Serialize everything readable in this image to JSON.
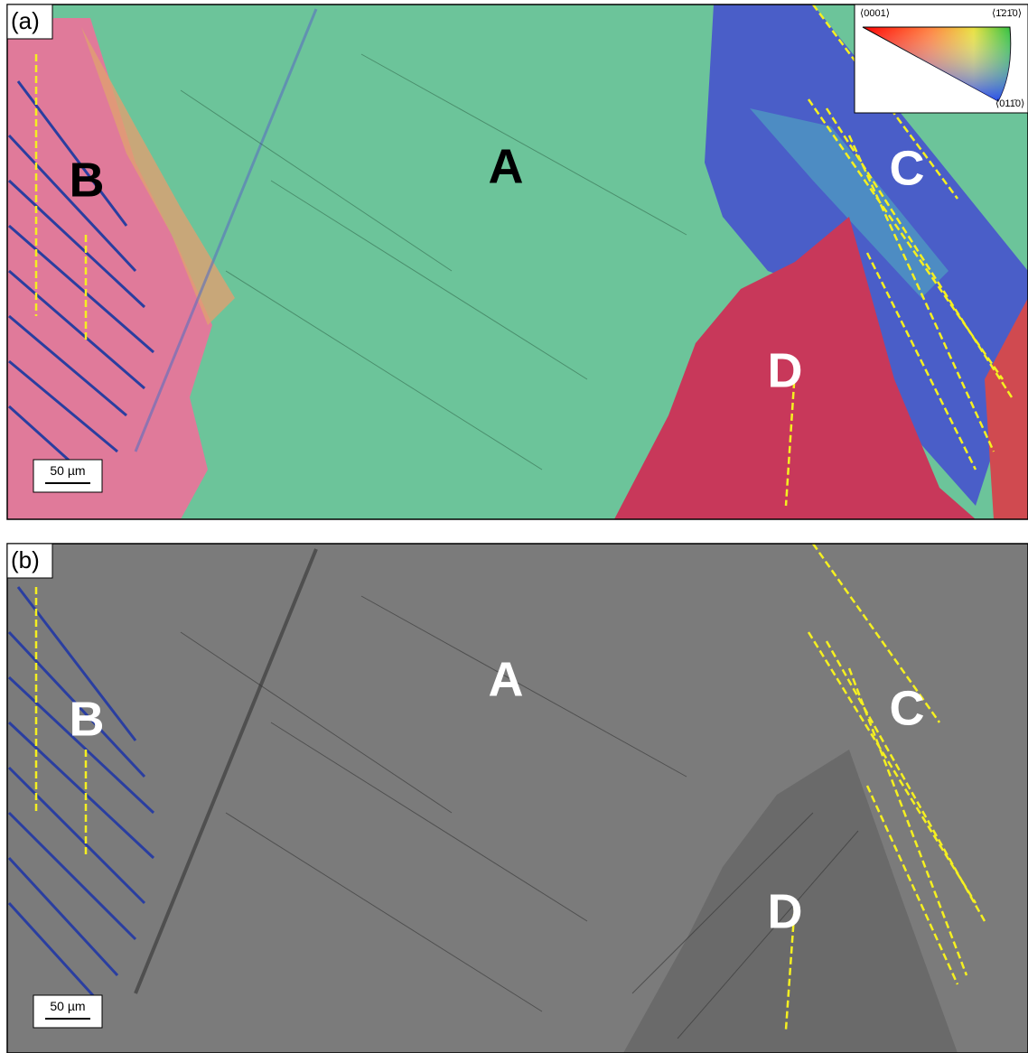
{
  "panels": [
    {
      "label": "(a)",
      "regions": [
        "A",
        "B",
        "C",
        "D"
      ],
      "scale_bar": "50 µm"
    },
    {
      "label": "(b)",
      "regions": [
        "A",
        "B",
        "C",
        "D"
      ],
      "scale_bar": "50 µm"
    }
  ],
  "legend": {
    "corners": [
      "⟨0001⟩",
      "⟨1̄21̄0⟩",
      "⟨011̄0⟩"
    ]
  }
}
